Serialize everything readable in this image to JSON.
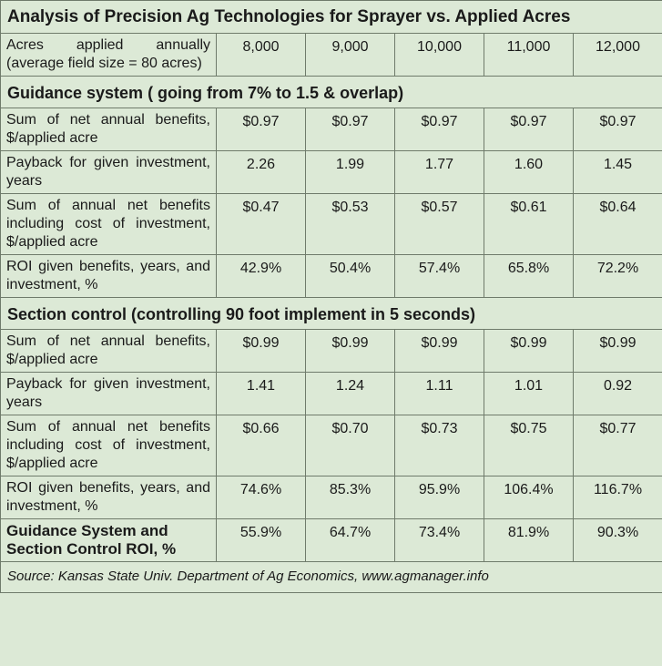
{
  "title": "Analysis of Precision Ag Technologies for Sprayer vs. Applied Acres",
  "acres_row": {
    "label": "Acres applied annually (average field size = 80 acres)",
    "values": [
      "8,000",
      "9,000",
      "10,000",
      "11,000",
      "12,000"
    ]
  },
  "guidance": {
    "heading": "Guidance system ( going from 7% to 1.5 & overlap)",
    "rows": [
      {
        "label": "Sum of net annual benefits, $/applied acre",
        "values": [
          "$0.97",
          "$0.97",
          "$0.97",
          "$0.97",
          "$0.97"
        ]
      },
      {
        "label": "Payback for given invest­ment, years",
        "values": [
          "2.26",
          "1.99",
          "1.77",
          "1.60",
          "1.45"
        ]
      },
      {
        "label": "Sum of annual net benefits including cost of invest­ment, $/applied acre",
        "values": [
          "$0.47",
          "$0.53",
          "$0.57",
          "$0.61",
          "$0.64"
        ]
      },
      {
        "label": "ROI given benefits, years, and investment, %",
        "values": [
          "42.9%",
          "50.4%",
          "57.4%",
          "65.8%",
          "72.2%"
        ]
      }
    ]
  },
  "section": {
    "heading": "Section control (controlling 90 foot implement in 5 seconds)",
    "rows": [
      {
        "label": "Sum of net annual benefits, $/applied acre",
        "values": [
          "$0.99",
          "$0.99",
          "$0.99",
          "$0.99",
          "$0.99"
        ]
      },
      {
        "label": "Payback for given invest­ment, years",
        "values": [
          "1.41",
          "1.24",
          "1.11",
          "1.01",
          "0.92"
        ]
      },
      {
        "label": "Sum of annual net benefits including cost of invest­ment, $/applied acre",
        "values": [
          "$0.66",
          "$0.70",
          "$0.73",
          "$0.75",
          "$0.77"
        ]
      },
      {
        "label": "ROI given benefits, years, and investment, %",
        "values": [
          "74.6%",
          "85.3%",
          "95.9%",
          "106.4%",
          "116.7%"
        ]
      }
    ]
  },
  "total": {
    "label": "Guidance System and Section Control ROI, %",
    "values": [
      "55.9%",
      "64.7%",
      "73.4%",
      "81.9%",
      "90.3%"
    ]
  },
  "source": "Source: Kansas State Univ. Department of Ag Economics, www.agmanager.info"
}
